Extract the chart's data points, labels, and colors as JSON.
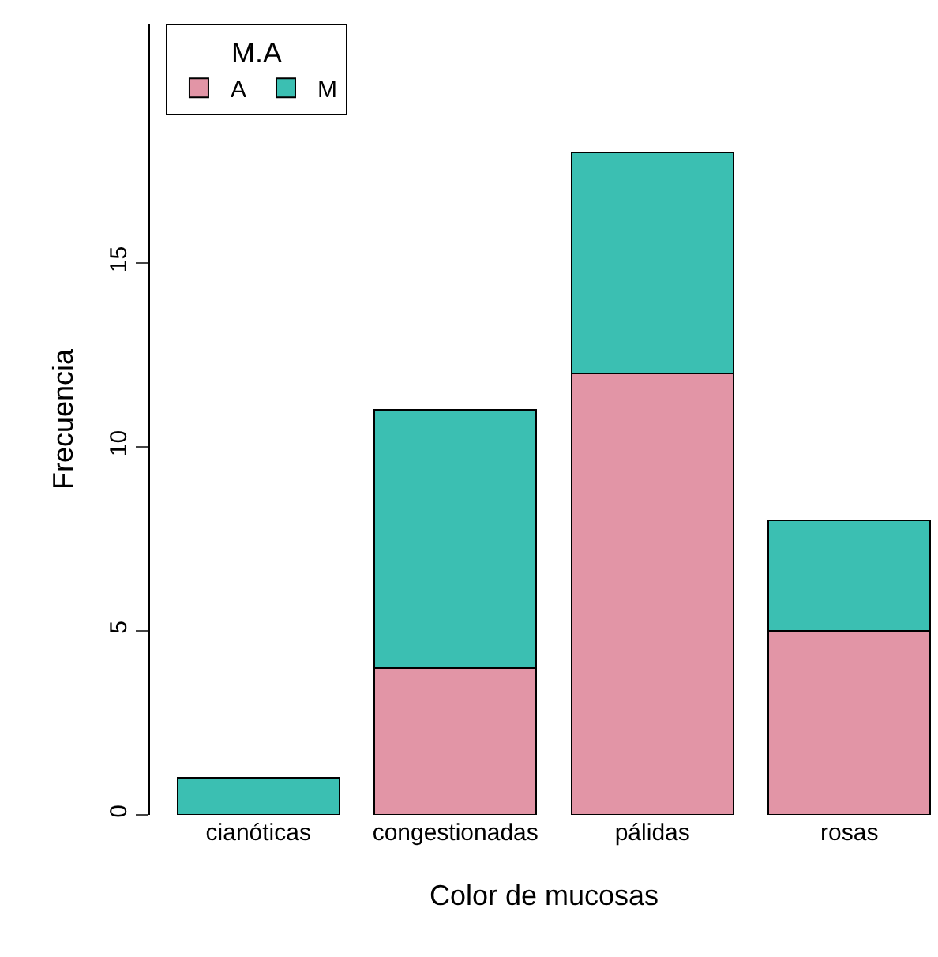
{
  "chart_data": {
    "type": "bar",
    "stacked": true,
    "xlabel": "Color de mucosas",
    "ylabel": "Frecuencia",
    "legend_title": "M.A",
    "legend": "top left",
    "categories": [
      "cianóticas",
      "congestionadas",
      "pálidas",
      "rosas"
    ],
    "series": [
      {
        "name": "A",
        "color": "#e295a6",
        "values": [
          0,
          4,
          12,
          5
        ]
      },
      {
        "name": "M",
        "color": "#3bbfb2",
        "values": [
          1,
          7,
          6,
          3
        ]
      }
    ],
    "ylim": [
      0,
      21.5
    ],
    "yticks": [
      0,
      5,
      10,
      15
    ]
  }
}
